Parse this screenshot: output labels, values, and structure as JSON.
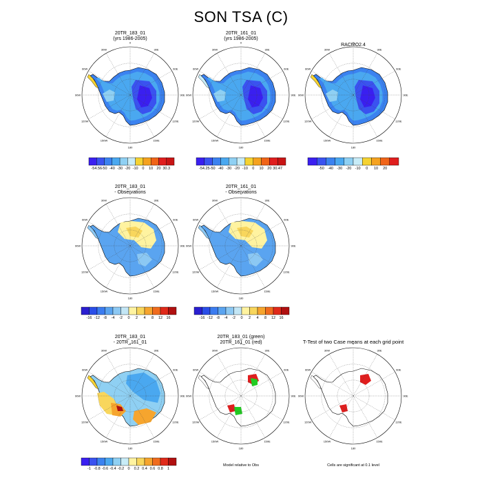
{
  "title": "SON TSA (C)",
  "lon_labels": [
    "0",
    "30E",
    "60E",
    "90E",
    "120E",
    "150E",
    "180",
    "150W",
    "120W",
    "90W",
    "60W",
    "30W"
  ],
  "panels": [
    {
      "id": "p11",
      "title_lines": [
        "20TR_183_01",
        "(yrs 1986-2005)"
      ],
      "style": "abs",
      "peninsula": "yellow"
    },
    {
      "id": "p12",
      "title_lines": [
        "20TR_161_01",
        "(yrs 1986-2005)"
      ],
      "style": "abs",
      "peninsula": "none"
    },
    {
      "id": "p13",
      "title_lines": [
        "RACMO2.4",
        ""
      ],
      "style": "abs",
      "peninsula": "yellow"
    },
    {
      "id": "p21",
      "title_lines": [
        "20TR_183_01",
        "- Observations"
      ],
      "style": "bias"
    },
    {
      "id": "p22",
      "title_lines": [
        "20TR_161_01",
        "- Observations"
      ],
      "style": "bias"
    },
    {
      "id": "p31",
      "title_lines": [
        "20TR_183_01",
        "- 20TR_161_01"
      ],
      "style": "diff"
    },
    {
      "id": "p32",
      "title_lines": [
        "20TR_183_01 (green)",
        "20TR_161_01 (red)"
      ],
      "style": "outline-gr"
    },
    {
      "id": "p33",
      "title_lines": [
        "T-Test of two Case means at each grid point",
        ""
      ],
      "style": "outline-r"
    }
  ],
  "colorbars": [
    {
      "id": "cb1",
      "labels": [
        "-54.56",
        "-50",
        "-40",
        "-30",
        "-20",
        "-10",
        "0",
        "10",
        "20",
        "30.3"
      ],
      "colors": [
        "#3a1ff0",
        "#3a52f0",
        "#3b82f0",
        "#4aa8f0",
        "#8fd0f3",
        "#c8ecf7",
        "#f5d232",
        "#f5a21f",
        "#f06418",
        "#e01e1e",
        "#c81414"
      ]
    },
    {
      "id": "cb2",
      "labels": [
        "-54.25",
        "-50",
        "-40",
        "-30",
        "-20",
        "-10",
        "0",
        "10",
        "20",
        "30.47"
      ],
      "colors": [
        "#3a1ff0",
        "#3a52f0",
        "#3b82f0",
        "#4aa8f0",
        "#8fd0f3",
        "#c8ecf7",
        "#f5d232",
        "#f5a21f",
        "#f06418",
        "#e01e1e",
        "#c81414"
      ]
    },
    {
      "id": "cb3",
      "labels": [
        "-50",
        "-40",
        "-30",
        "-20",
        "-10",
        "0",
        "10",
        "20"
      ],
      "colors": [
        "#3a1ff0",
        "#3a52f0",
        "#3b82f0",
        "#4aa8f0",
        "#8fd0f3",
        "#c8ecf7",
        "#f5d232",
        "#f5a21f",
        "#f06418",
        "#e01e1e"
      ]
    },
    {
      "id": "cb4",
      "labels": [
        "-16",
        "-12",
        "-8",
        "-4",
        "-2",
        "0",
        "2",
        "4",
        "8",
        "12",
        "16"
      ],
      "colors": [
        "#2a1fd0",
        "#2a4ee8",
        "#3b7cf0",
        "#5aa4f0",
        "#8cc8f3",
        "#c3e6f5",
        "#fff3a0",
        "#f8d65c",
        "#f6a52e",
        "#f06c1e",
        "#e02a1a",
        "#b01010"
      ]
    },
    {
      "id": "cb5",
      "labels": [
        "-16",
        "-12",
        "-8",
        "-4",
        "-2",
        "0",
        "2",
        "4",
        "8",
        "12",
        "16"
      ],
      "colors": [
        "#2a1fd0",
        "#2a4ee8",
        "#3b7cf0",
        "#5aa4f0",
        "#8cc8f3",
        "#c3e6f5",
        "#fff3a0",
        "#f8d65c",
        "#f6a52e",
        "#f06c1e",
        "#e02a1a",
        "#b01010"
      ]
    },
    {
      "id": "cb6",
      "labels": [
        "-1",
        "-0.8",
        "-0.6",
        "-0.4",
        "-0.2",
        "0",
        "0.2",
        "0.4",
        "0.6",
        "0.8",
        "1"
      ],
      "colors": [
        "#3a1ff0",
        "#3a52f0",
        "#3b82f0",
        "#4aa8f0",
        "#8fd0f3",
        "#c8ecf7",
        "#fff3a0",
        "#f8d65c",
        "#f6a52e",
        "#f06c1e",
        "#e02a1a",
        "#b01010"
      ]
    }
  ],
  "notes": {
    "model_rel": "Model relative to Obs",
    "ttest": "Cells are significant at 0.1 level"
  }
}
